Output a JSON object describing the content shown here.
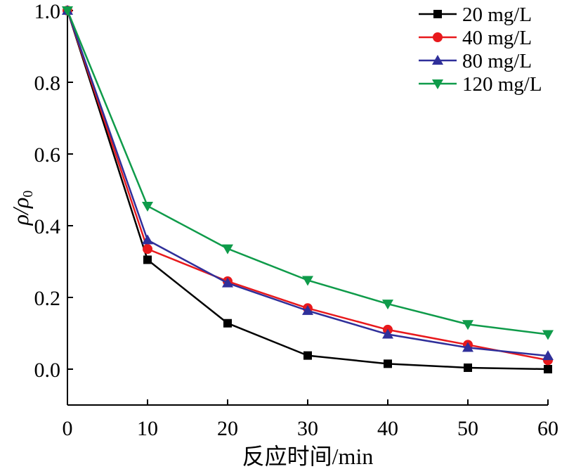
{
  "chart_data": {
    "type": "line",
    "title": "",
    "xlabel": "反应时间/min",
    "ylabel_main": "ρ/ρ",
    "ylabel_sub": "0",
    "x": [
      0,
      10,
      20,
      30,
      40,
      50,
      60
    ],
    "xlim": [
      0,
      60
    ],
    "ylim": [
      -0.1,
      1.0
    ],
    "xticks": [
      0,
      10,
      20,
      30,
      40,
      50,
      60
    ],
    "yticks": [
      0.0,
      0.2,
      0.4,
      0.6,
      0.8,
      1.0
    ],
    "ytick_labels": [
      "0.0",
      "0.2",
      "0.4",
      "0.6",
      "0.8",
      "1.0"
    ],
    "grid": false,
    "legend_position": "top-right",
    "series": [
      {
        "name": "20 mg/L",
        "color": "#000000",
        "marker": "square",
        "values": [
          1.0,
          0.305,
          0.128,
          0.038,
          0.015,
          0.004,
          0.0
        ]
      },
      {
        "name": "40 mg/L",
        "color": "#e8191c",
        "marker": "circle",
        "values": [
          1.0,
          0.335,
          0.245,
          0.17,
          0.11,
          0.068,
          0.025
        ]
      },
      {
        "name": "80 mg/L",
        "color": "#2f2f9a",
        "marker": "triangle-up",
        "values": [
          1.0,
          0.36,
          0.24,
          0.163,
          0.097,
          0.06,
          0.037
        ]
      },
      {
        "name": "120 mg/L",
        "color": "#0f9b4a",
        "marker": "triangle-down",
        "values": [
          1.0,
          0.455,
          0.336,
          0.248,
          0.182,
          0.125,
          0.097
        ]
      }
    ]
  }
}
